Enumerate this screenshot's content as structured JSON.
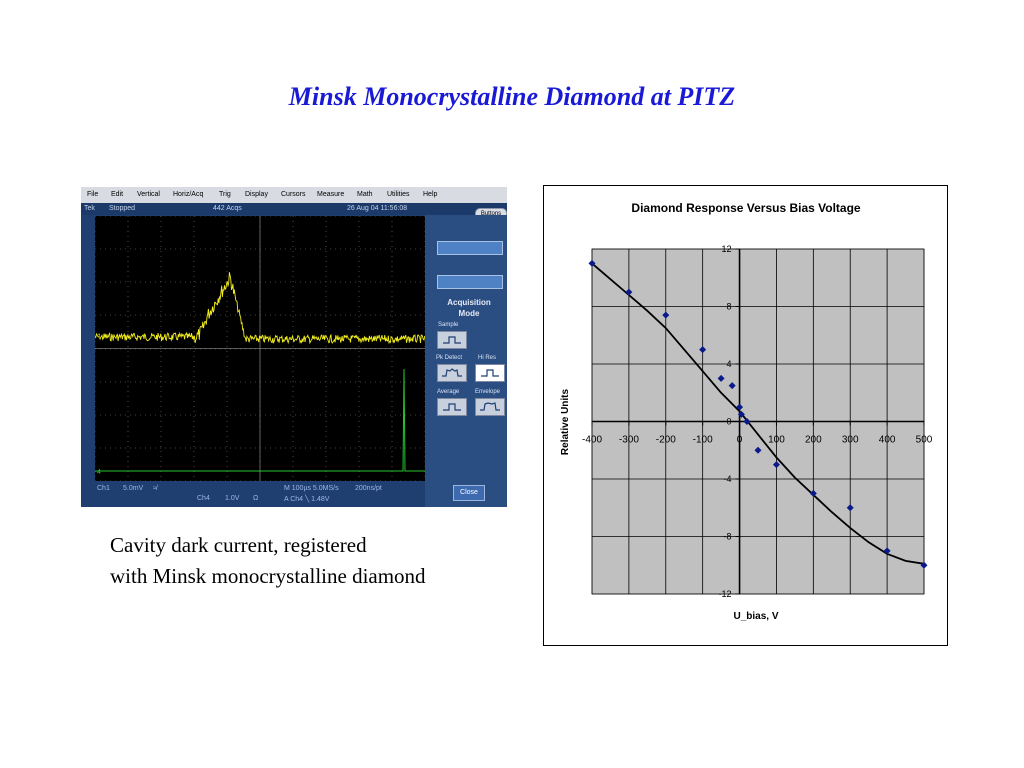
{
  "slide": {
    "title": "Minsk Monocrystalline Diamond at PITZ",
    "caption_line1": "Cavity dark current, registered",
    "caption_line2": "with Minsk monocrystalline diamond"
  },
  "scope": {
    "menu": [
      "File",
      "Edit",
      "Vertical",
      "Horiz/Acq",
      "Trig",
      "Display",
      "Cursors",
      "Measure",
      "Math",
      "Utilities",
      "Help"
    ],
    "status": {
      "brand": "Tek",
      "state": "Stopped",
      "acqs": "442 Acqs",
      "datetime": "26 Aug 04 11:56:08"
    },
    "buttons_label": "Buttons",
    "panel_title_line1": "Acquisition",
    "panel_title_line2": "Mode",
    "modes": [
      {
        "label": "Sample",
        "selected": false
      },
      {
        "label": "Pk Detect",
        "selected": false
      },
      {
        "label": "Hi Res",
        "selected": true
      },
      {
        "label": "Average",
        "selected": false
      },
      {
        "label": "Envelope",
        "selected": false
      }
    ],
    "close_label": "Close",
    "bottom": {
      "ch1": "Ch1",
      "ch1_scale": "5.0mV",
      "ch1_sym": "≉",
      "ch4": "Ch4",
      "ch4_scale": "1.0V",
      "ch4_sym": "Ω",
      "timebase": "M 100µs 5.0MS/s",
      "resolution": "200ns/pt",
      "trigger": "A  Ch4  ╲  1.48V"
    },
    "markers": {
      "ch1": "1",
      "ch4": "4"
    },
    "colors": {
      "ch1": "#f2ee1c",
      "ch4": "#27c42c",
      "grid": "#5a5a5a"
    }
  },
  "chart_data": {
    "type": "scatter",
    "title": "Diamond Response Versus Bias Voltage",
    "xlabel": "U_bias, V",
    "ylabel": "Relative Units",
    "xlim": [
      -400,
      500
    ],
    "ylim": [
      -12,
      12
    ],
    "x_ticks": [
      -400,
      -300,
      -200,
      -100,
      0,
      100,
      200,
      300,
      400,
      500
    ],
    "y_ticks": [
      -12,
      -8,
      -4,
      0,
      4,
      8,
      12
    ],
    "grid": true,
    "points": [
      {
        "x": -400,
        "y": 11
      },
      {
        "x": -300,
        "y": 9
      },
      {
        "x": -200,
        "y": 7.4
      },
      {
        "x": -100,
        "y": 5
      },
      {
        "x": -50,
        "y": 3
      },
      {
        "x": -20,
        "y": 2.5
      },
      {
        "x": 0,
        "y": 1
      },
      {
        "x": 5,
        "y": 0.5
      },
      {
        "x": 20,
        "y": 0
      },
      {
        "x": 50,
        "y": -2
      },
      {
        "x": 100,
        "y": -3
      },
      {
        "x": 200,
        "y": -5
      },
      {
        "x": 300,
        "y": -6
      },
      {
        "x": 400,
        "y": -9
      },
      {
        "x": 500,
        "y": -10
      }
    ],
    "trendline": {
      "x": [
        -400,
        -350,
        -300,
        -250,
        -200,
        -150,
        -100,
        -50,
        0,
        50,
        100,
        150,
        200,
        250,
        300,
        350,
        400,
        450,
        500
      ],
      "y": [
        11.0,
        9.9,
        8.8,
        7.7,
        6.5,
        5.0,
        3.5,
        2.0,
        0.7,
        -0.9,
        -2.5,
        -3.9,
        -5.1,
        -6.3,
        -7.4,
        -8.4,
        -9.2,
        -9.7,
        -9.9
      ]
    },
    "colors": {
      "plot_bg": "#c0c0c0",
      "marker": "#0a1a8a",
      "line": "#000000"
    }
  }
}
